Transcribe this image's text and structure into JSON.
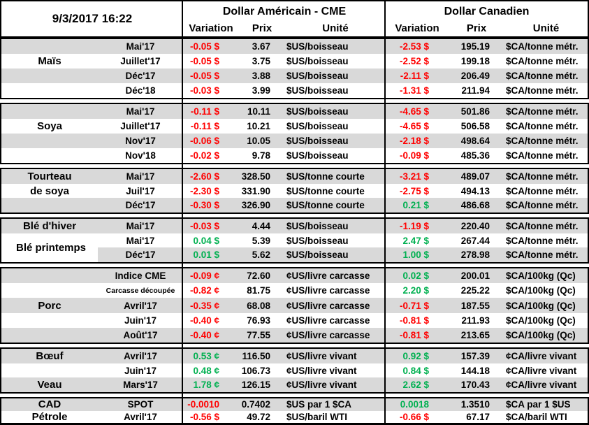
{
  "header": {
    "date": "9/3/2017 16:22",
    "us_title": "Dollar Américain - CME",
    "ca_title": "Dollar Canadien",
    "columns": [
      "Variation",
      "Prix",
      "Unité"
    ]
  },
  "colors": {
    "negative": "#FF0000",
    "positive": "#00B050",
    "row_shade": "#D9D9D9",
    "border": "#000000"
  },
  "chart_data": {
    "type": "table",
    "title": "9/3/2017 16:22",
    "column_groups": [
      "Dollar Américain - CME",
      "Dollar Canadien"
    ],
    "columns": [
      "Produit",
      "Échéance",
      "Variation",
      "Prix",
      "Unité",
      "Variation",
      "Prix",
      "Unité"
    ],
    "groups": [
      {
        "product": "Maïs",
        "labels": [
          {
            "text": "Maïs",
            "row": 1,
            "span": 1
          }
        ],
        "rows": [
          {
            "term": "Mai'17",
            "shade": "full",
            "us": {
              "variation": "-0.05 $",
              "trend": "down",
              "prix": "3.67",
              "unite": "$US/boisseau"
            },
            "ca": {
              "variation": "-2.53 $",
              "trend": "down",
              "prix": "195.19",
              "unite": "$CA/tonne métr."
            }
          },
          {
            "term": "Juillet'17",
            "shade": "none",
            "us": {
              "variation": "-0.05 $",
              "trend": "down",
              "prix": "3.75",
              "unite": "$US/boisseau"
            },
            "ca": {
              "variation": "-2.52 $",
              "trend": "down",
              "prix": "199.18",
              "unite": "$CA/tonne métr."
            }
          },
          {
            "term": "Déc'17",
            "shade": "full",
            "us": {
              "variation": "-0.05 $",
              "trend": "down",
              "prix": "3.88",
              "unite": "$US/boisseau"
            },
            "ca": {
              "variation": "-2.11 $",
              "trend": "down",
              "prix": "206.49",
              "unite": "$CA/tonne métr."
            }
          },
          {
            "term": "Déc'18",
            "shade": "none",
            "us": {
              "variation": "-0.03 $",
              "trend": "down",
              "prix": "3.99",
              "unite": "$US/boisseau"
            },
            "ca": {
              "variation": "-1.31 $",
              "trend": "down",
              "prix": "211.94",
              "unite": "$CA/tonne métr."
            }
          }
        ]
      },
      {
        "product": "Soya",
        "labels": [
          {
            "text": "Soya",
            "row": 1,
            "span": 1
          }
        ],
        "rows": [
          {
            "term": "Mai'17",
            "shade": "full",
            "us": {
              "variation": "-0.11 $",
              "trend": "down",
              "prix": "10.11",
              "unite": "$US/boisseau"
            },
            "ca": {
              "variation": "-4.65 $",
              "trend": "down",
              "prix": "501.86",
              "unite": "$CA/tonne métr."
            }
          },
          {
            "term": "Juillet'17",
            "shade": "none",
            "us": {
              "variation": "-0.11 $",
              "trend": "down",
              "prix": "10.21",
              "unite": "$US/boisseau"
            },
            "ca": {
              "variation": "-4.65 $",
              "trend": "down",
              "prix": "506.58",
              "unite": "$CA/tonne métr."
            }
          },
          {
            "term": "Nov'17",
            "shade": "full",
            "us": {
              "variation": "-0.06 $",
              "trend": "down",
              "prix": "10.05",
              "unite": "$US/boisseau"
            },
            "ca": {
              "variation": "-2.18 $",
              "trend": "down",
              "prix": "498.64",
              "unite": "$CA/tonne métr."
            }
          },
          {
            "term": "Nov'18",
            "shade": "none",
            "us": {
              "variation": "-0.02 $",
              "trend": "down",
              "prix": "9.78",
              "unite": "$US/boisseau"
            },
            "ca": {
              "variation": "-0.09 $",
              "trend": "down",
              "prix": "485.36",
              "unite": "$CA/tonne métr."
            }
          }
        ]
      },
      {
        "product": "Tourteau de soya",
        "labels": [
          {
            "text": "Tourteau",
            "row": 0,
            "span": 1
          },
          {
            "text": "de soya",
            "row": 1,
            "span": 1
          }
        ],
        "rows": [
          {
            "term": "Mai'17",
            "shade": "full",
            "us": {
              "variation": "-2.60 $",
              "trend": "down",
              "prix": "328.50",
              "unite": "$US/tonne courte"
            },
            "ca": {
              "variation": "-3.21 $",
              "trend": "down",
              "prix": "489.07",
              "unite": "$CA/tonne métr."
            }
          },
          {
            "term": "Juil'17",
            "shade": "none",
            "us": {
              "variation": "-2.30 $",
              "trend": "down",
              "prix": "331.90",
              "unite": "$US/tonne courte"
            },
            "ca": {
              "variation": "-2.75 $",
              "trend": "down",
              "prix": "494.13",
              "unite": "$CA/tonne métr."
            }
          },
          {
            "term": "Déc'17",
            "shade": "full",
            "us": {
              "variation": "-0.30 $",
              "trend": "down",
              "prix": "326.90",
              "unite": "$US/tonne courte"
            },
            "ca": {
              "variation": "0.21 $",
              "trend": "up",
              "prix": "486.68",
              "unite": "$CA/tonne métr."
            }
          }
        ]
      },
      {
        "product": "Blé",
        "labels": [
          {
            "text": "Blé d'hiver",
            "row": 0,
            "span": 1
          },
          {
            "text": "Blé printemps",
            "row": 1,
            "span": 2
          }
        ],
        "rows": [
          {
            "term": "Mai'17",
            "shade": "full",
            "us": {
              "variation": "-0.03 $",
              "trend": "down",
              "prix": "4.44",
              "unite": "$US/boisseau"
            },
            "ca": {
              "variation": "-1.19 $",
              "trend": "down",
              "prix": "220.40",
              "unite": "$CA/tonne métr."
            }
          },
          {
            "term": "Mai'17",
            "shade": "none",
            "us": {
              "variation": "0.04 $",
              "trend": "up",
              "prix": "5.39",
              "unite": "$US/boisseau"
            },
            "ca": {
              "variation": "2.47 $",
              "trend": "up",
              "prix": "267.44",
              "unite": "$CA/tonne métr."
            }
          },
          {
            "term": "Déc'17",
            "shade": "partial",
            "us": {
              "variation": "0.01 $",
              "trend": "up",
              "prix": "5.62",
              "unite": "$US/boisseau"
            },
            "ca": {
              "variation": "1.00 $",
              "trend": "up",
              "prix": "278.98",
              "unite": "$CA/tonne métr."
            }
          }
        ]
      },
      {
        "product": "Porc",
        "labels": [
          {
            "text": "Porc",
            "row": 2,
            "span": 1
          }
        ],
        "rows": [
          {
            "term": "Indice CME",
            "shade": "full",
            "us": {
              "variation": "-0.09 ¢",
              "trend": "down",
              "prix": "72.60",
              "unite": "¢US/livre carcasse"
            },
            "ca": {
              "variation": "0.02 $",
              "trend": "up",
              "prix": "200.01",
              "unite": "$CA/100kg (Qc)"
            }
          },
          {
            "term": "Carcasse découpée",
            "shade": "none",
            "small_term": true,
            "us": {
              "variation": "-0.82 ¢",
              "trend": "down",
              "prix": "81.75",
              "unite": "¢US/livre carcasse"
            },
            "ca": {
              "variation": "2.20 $",
              "trend": "up",
              "prix": "225.22",
              "unite": "$CA/100kg (Qc)"
            }
          },
          {
            "term": "Avril'17",
            "shade": "full",
            "us": {
              "variation": "-0.35 ¢",
              "trend": "down",
              "prix": "68.08",
              "unite": "¢US/livre carcasse"
            },
            "ca": {
              "variation": "-0.71 $",
              "trend": "down",
              "prix": "187.55",
              "unite": "$CA/100kg (Qc)"
            }
          },
          {
            "term": "Juin'17",
            "shade": "none",
            "us": {
              "variation": "-0.40 ¢",
              "trend": "down",
              "prix": "76.93",
              "unite": "¢US/livre carcasse"
            },
            "ca": {
              "variation": "-0.81 $",
              "trend": "down",
              "prix": "211.93",
              "unite": "$CA/100kg (Qc)"
            }
          },
          {
            "term": "Août'17",
            "shade": "full",
            "us": {
              "variation": "-0.40 ¢",
              "trend": "down",
              "prix": "77.55",
              "unite": "¢US/livre carcasse"
            },
            "ca": {
              "variation": "-0.81 $",
              "trend": "down",
              "prix": "213.65",
              "unite": "$CA/100kg (Qc)"
            }
          }
        ]
      },
      {
        "product": "Bœuf / Veau",
        "labels": [
          {
            "text": "Bœuf",
            "row": 0,
            "span": 1
          },
          {
            "text": "Veau",
            "row": 2,
            "span": 1
          }
        ],
        "rows": [
          {
            "term": "Avril'17",
            "shade": "full",
            "us": {
              "variation": "0.53 ¢",
              "trend": "up",
              "prix": "116.50",
              "unite": "¢US/livre vivant"
            },
            "ca": {
              "variation": "0.92 $",
              "trend": "up",
              "prix": "157.39",
              "unite": "¢CA/livre vivant"
            }
          },
          {
            "term": "Juin'17",
            "shade": "none",
            "us": {
              "variation": "0.48 ¢",
              "trend": "up",
              "prix": "106.73",
              "unite": "¢US/livre vivant"
            },
            "ca": {
              "variation": "0.84 $",
              "trend": "up",
              "prix": "144.18",
              "unite": "¢CA/livre vivant"
            }
          },
          {
            "term": "Mars'17",
            "shade": "full",
            "us": {
              "variation": "1.78 ¢",
              "trend": "up",
              "prix": "126.15",
              "unite": "¢US/livre vivant"
            },
            "ca": {
              "variation": "2.62 $",
              "trend": "up",
              "prix": "170.43",
              "unite": "¢CA/livre vivant"
            }
          }
        ]
      },
      {
        "product": "CAD / Pétrole",
        "labels": [
          {
            "text": "CAD",
            "row": 0,
            "span": 1
          },
          {
            "text": "Pétrole",
            "row": 1,
            "span": 1
          }
        ],
        "rows": [
          {
            "term": "SPOT",
            "shade": "full",
            "us": {
              "variation": "-0.0010",
              "trend": "down",
              "prix": "0.7402",
              "unite": "$US par 1 $CA"
            },
            "ca": {
              "variation": "0.0018",
              "trend": "up",
              "prix": "1.3510",
              "unite": "$CA par 1 $US"
            }
          },
          {
            "term": "Avril'17",
            "shade": "none",
            "us": {
              "variation": "-0.56 $",
              "trend": "down",
              "prix": "49.72",
              "unite": "$US/baril WTI"
            },
            "ca": {
              "variation": "-0.66 $",
              "trend": "down",
              "prix": "67.17",
              "unite": "$CA/baril WTI"
            }
          }
        ]
      }
    ]
  }
}
